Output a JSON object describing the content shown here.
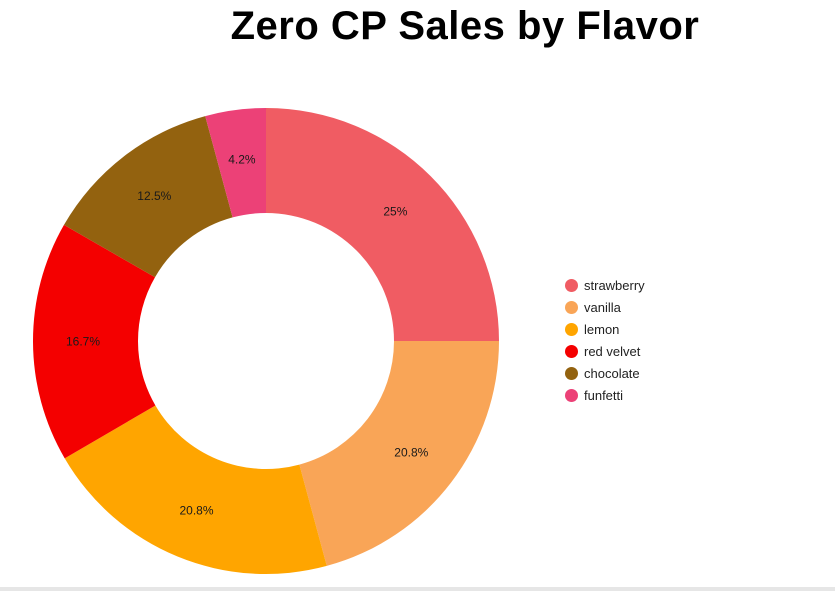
{
  "chart_data": {
    "type": "pie",
    "title": "Zero CP Sales by Flavor",
    "donut": true,
    "slices": [
      {
        "label": "strawberry",
        "value": 25,
        "display": "25%",
        "color": "#f05c63"
      },
      {
        "label": "vanilla",
        "value": 20.8,
        "display": "20.8%",
        "color": "#f9a557"
      },
      {
        "label": "lemon",
        "value": 20.8,
        "display": "20.8%",
        "color": "#ffa500"
      },
      {
        "label": "red velvet",
        "value": 16.7,
        "display": "16.7%",
        "color": "#f40000"
      },
      {
        "label": "chocolate",
        "value": 12.5,
        "display": "12.5%",
        "color": "#93620f"
      },
      {
        "label": "funfetti",
        "value": 4.2,
        "display": "4.2%",
        "color": "#ec4177"
      }
    ],
    "legend_position": "right"
  }
}
